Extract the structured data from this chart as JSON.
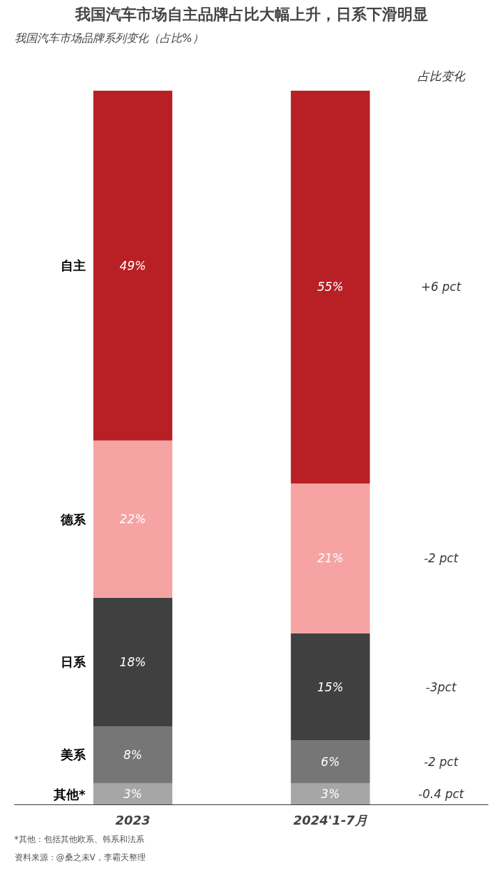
{
  "chart_data": {
    "type": "bar",
    "stacked": true,
    "title": "我国汽车市场自主品牌占比大幅上升，日系下滑明显",
    "subtitle": "我国汽车市场品牌系列变化（占比%）",
    "categories": [
      "2023",
      "2024'1-7月"
    ],
    "series": [
      {
        "name": "其他*",
        "color": "#a6a6a6",
        "values": [
          3,
          3
        ],
        "value_labels": [
          "3%",
          "3%"
        ]
      },
      {
        "name": "美系",
        "color": "#767676",
        "values": [
          8,
          6
        ],
        "value_labels": [
          "8%",
          "6%"
        ]
      },
      {
        "name": "日系",
        "color": "#404040",
        "values": [
          18,
          15
        ],
        "value_labels": [
          "18%",
          "15%"
        ]
      },
      {
        "name": "德系",
        "color": "#f5a3a3",
        "values": [
          22,
          21
        ],
        "value_labels": [
          "22%",
          "21%"
        ]
      },
      {
        "name": "自主",
        "color": "#b82025",
        "values": [
          49,
          55
        ],
        "value_labels": [
          "49%",
          "55%"
        ]
      }
    ],
    "annotations": [
      "占比变化",
      "+6 pct",
      "-2 pct",
      "-3pct",
      "-2 pct",
      "-0.4 pct",
      "*其他：包括其他欧系、韩系和法系",
      "资料来源：@桑之未V，李霸天整理"
    ],
    "legend": false,
    "grid": false
  }
}
